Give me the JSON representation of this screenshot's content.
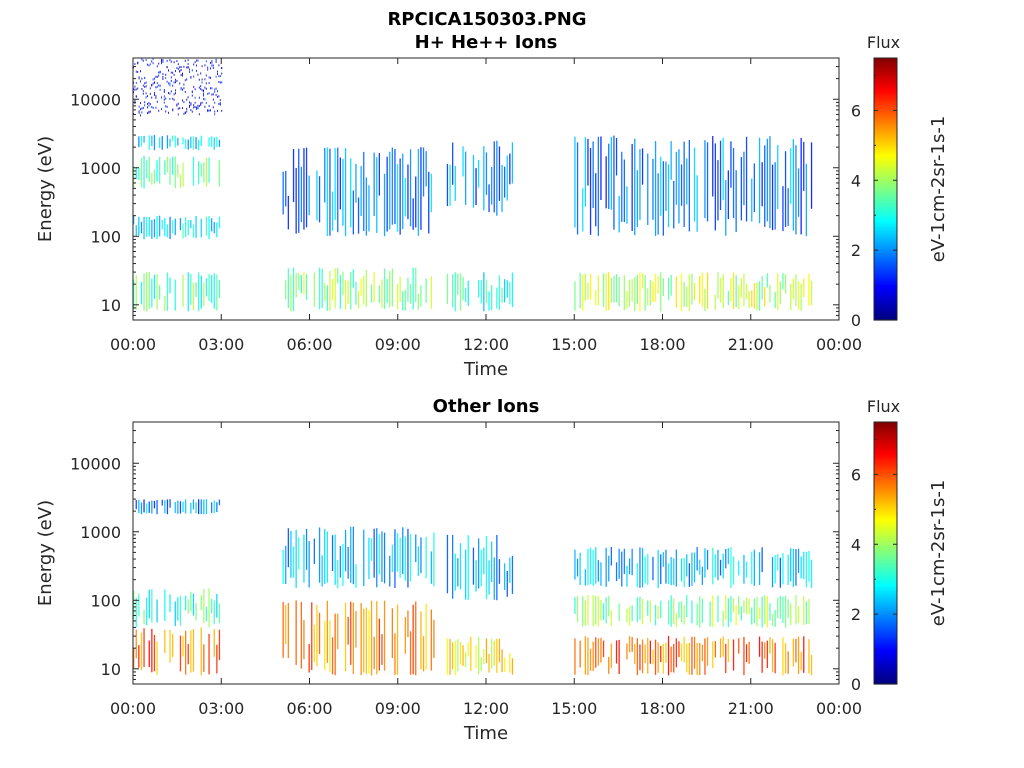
{
  "figure_title": "RPCICA150303.PNG",
  "chart_data": [
    {
      "type": "heatmap",
      "title": "H+ He++ Ions",
      "xlabel": "Time",
      "ylabel": "Energy (eV)",
      "y_scale": "log",
      "ylim": [
        6,
        40000
      ],
      "xlim": [
        "00:00",
        "24:00"
      ],
      "x_ticks": [
        "00:00",
        "03:00",
        "06:00",
        "09:00",
        "12:00",
        "15:00",
        "18:00",
        "21:00",
        "00:00"
      ],
      "y_ticks": [
        "10",
        "100",
        "1000",
        "10000"
      ],
      "colorbar": {
        "title": "Flux",
        "label": "eV-1cm-2sr-1s-1",
        "range": [
          0,
          7.5
        ],
        "ticks": [
          "0",
          "2",
          "4",
          "6"
        ],
        "colormap": "jet"
      },
      "data_gaps": [
        [
          "03:00",
          "05:05"
        ],
        [
          "10:15",
          "10:40"
        ],
        [
          "12:55",
          "15:00"
        ],
        [
          "23:05",
          "24:00"
        ]
      ],
      "features": [
        {
          "time": [
            "00:00",
            "03:00"
          ],
          "energy": [
            6000,
            40000
          ],
          "flux": 0.8,
          "note": "diffuse"
        },
        {
          "time": [
            "00:00",
            "03:00"
          ],
          "energy": [
            1800,
            3000
          ],
          "flux": 2.5
        },
        {
          "time": [
            "00:00",
            "03:00"
          ],
          "energy": [
            500,
            1500
          ],
          "flux": 3.4
        },
        {
          "time": [
            "00:00",
            "03:00"
          ],
          "energy": [
            90,
            200
          ],
          "flux": 2.6
        },
        {
          "time": [
            "00:00",
            "03:00"
          ],
          "energy": [
            8,
            30
          ],
          "flux": 3.4
        },
        {
          "time": [
            "05:05",
            "10:15"
          ],
          "energy": [
            8,
            35
          ],
          "flux": 3.8
        },
        {
          "time": [
            "05:05",
            "10:15"
          ],
          "energy": [
            100,
            2000
          ],
          "flux": 1.9
        },
        {
          "time": [
            "10:40",
            "12:55"
          ],
          "energy": [
            8,
            30
          ],
          "flux": 3.0
        },
        {
          "time": [
            "10:40",
            "12:55"
          ],
          "energy": [
            200,
            2500
          ],
          "flux": 1.8
        },
        {
          "time": [
            "15:00",
            "23:05"
          ],
          "energy": [
            8,
            30
          ],
          "flux": 4.2
        },
        {
          "time": [
            "15:00",
            "23:05"
          ],
          "energy": [
            100,
            3000
          ],
          "flux": 1.8
        }
      ]
    },
    {
      "type": "heatmap",
      "title": "Other Ions",
      "xlabel": "Time",
      "ylabel": "Energy (eV)",
      "y_scale": "log",
      "ylim": [
        6,
        40000
      ],
      "xlim": [
        "00:00",
        "24:00"
      ],
      "x_ticks": [
        "00:00",
        "03:00",
        "06:00",
        "09:00",
        "12:00",
        "15:00",
        "18:00",
        "21:00",
        "00:00"
      ],
      "y_ticks": [
        "10",
        "100",
        "1000",
        "10000"
      ],
      "colorbar": {
        "title": "Flux",
        "label": "eV-1cm-2sr-1s-1",
        "range": [
          0,
          7.5
        ],
        "ticks": [
          "0",
          "2",
          "4",
          "6"
        ],
        "colormap": "jet"
      },
      "data_gaps": [
        [
          "03:00",
          "05:05"
        ],
        [
          "10:15",
          "10:40"
        ],
        [
          "12:55",
          "15:00"
        ],
        [
          "23:05",
          "24:00"
        ]
      ],
      "features": [
        {
          "time": [
            "00:00",
            "03:00"
          ],
          "energy": [
            1800,
            3000
          ],
          "flux": 2.0
        },
        {
          "time": [
            "00:00",
            "03:00"
          ],
          "energy": [
            40,
            150
          ],
          "flux": 3.2
        },
        {
          "time": [
            "00:00",
            "03:00"
          ],
          "energy": [
            8,
            40
          ],
          "flux": 5.8
        },
        {
          "time": [
            "05:05",
            "10:15"
          ],
          "energy": [
            8,
            100
          ],
          "flux": 5.5
        },
        {
          "time": [
            "05:05",
            "10:15"
          ],
          "energy": [
            150,
            1200
          ],
          "flux": 2.3
        },
        {
          "time": [
            "10:40",
            "12:55"
          ],
          "energy": [
            8,
            30
          ],
          "flux": 4.8
        },
        {
          "time": [
            "10:40",
            "12:55"
          ],
          "energy": [
            100,
            900
          ],
          "flux": 2.3
        },
        {
          "time": [
            "15:00",
            "23:05"
          ],
          "energy": [
            8,
            30
          ],
          "flux": 5.8
        },
        {
          "time": [
            "15:00",
            "23:05"
          ],
          "energy": [
            40,
            120
          ],
          "flux": 3.8
        },
        {
          "time": [
            "15:00",
            "23:05"
          ],
          "energy": [
            150,
            600
          ],
          "flux": 2.3
        }
      ]
    }
  ]
}
